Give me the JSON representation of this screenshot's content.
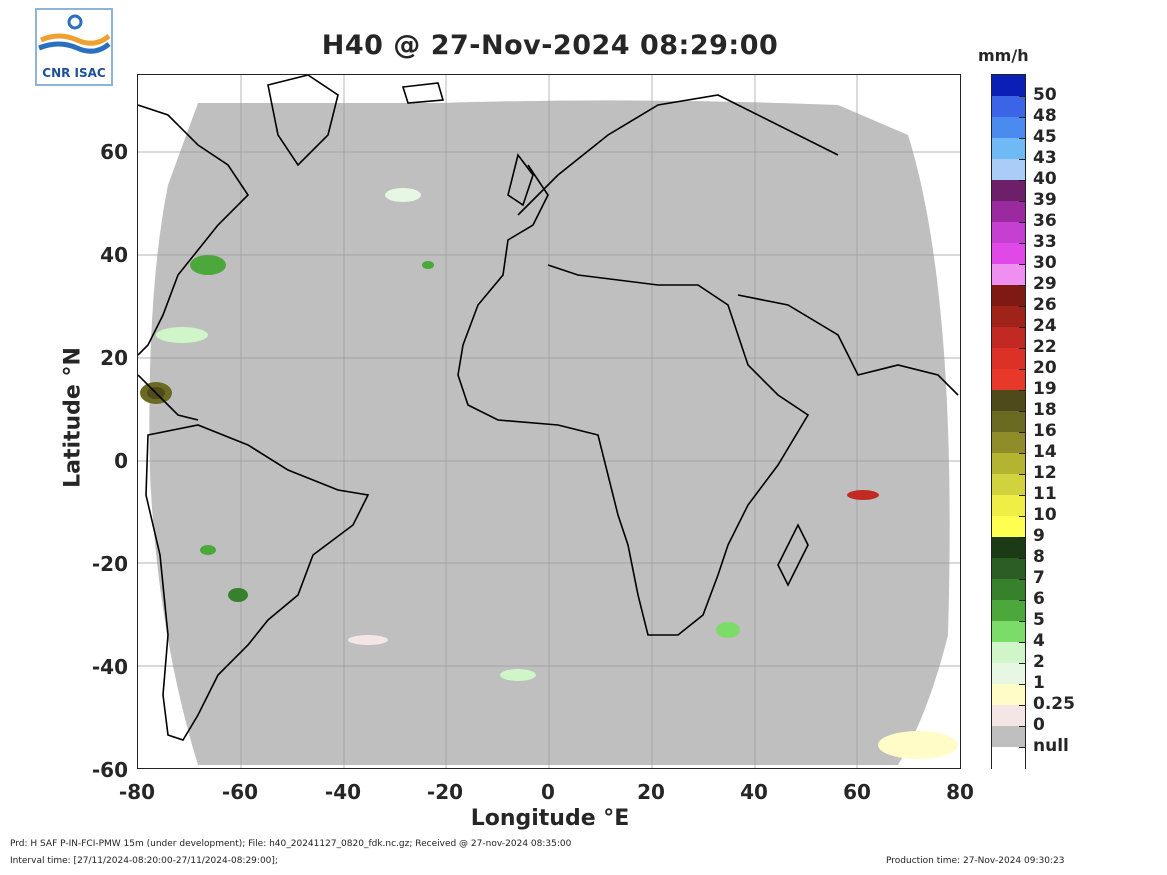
{
  "logo": {
    "text": "CNR ISAC",
    "icon": "cnr-isac-logo"
  },
  "title": "H40  @ 27-Nov-2024 08:29:00",
  "axes": {
    "xlabel": "Longitude °E",
    "ylabel": "Latitude °N",
    "xticks": [
      "-80",
      "-60",
      "-40",
      "-20",
      "0",
      "20",
      "40",
      "60",
      "80"
    ],
    "yticks": [
      "60",
      "40",
      "20",
      "0",
      "-20",
      "-40",
      "-60"
    ],
    "xlim": [
      -80,
      80
    ],
    "ylim": [
      -60,
      75
    ],
    "grid": true
  },
  "colorbar": {
    "units": "mm/h",
    "labels": [
      "50",
      "48",
      "45",
      "43",
      "40",
      "39",
      "36",
      "33",
      "30",
      "29",
      "26",
      "24",
      "22",
      "20",
      "19",
      "18",
      "16",
      "14",
      "12",
      "11",
      "10",
      "9",
      "8",
      "7",
      "6",
      "5",
      "4",
      "2",
      "1",
      "0.25",
      "0",
      "null"
    ],
    "colors": [
      "#0a1fb5",
      "#3c64e6",
      "#4b8aee",
      "#6fbaf5",
      "#a9cdf6",
      "#6e1f6a",
      "#9b2aa0",
      "#c53fd0",
      "#e048e8",
      "#ef8ff2",
      "#7e1a12",
      "#a0231a",
      "#c12a22",
      "#dc3126",
      "#e8382a",
      "#4f4a1c",
      "#6b6a22",
      "#8e8d2a",
      "#b4b332",
      "#d2d23e",
      "#eeee47",
      "#ffff52",
      "#1d3a16",
      "#2a5e22",
      "#37812c",
      "#4ca83a",
      "#7bdc6a",
      "#cff5c8",
      "#e6f7e3",
      "#fffcc8",
      "#f4e6e4",
      "#bfbfbf",
      "#ffffff"
    ]
  },
  "footer": {
    "product": "Prd: H SAF P-IN-FCI-PMW 15m (under development); File: h40_20241127_0820_fdk.nc.gz; Received @ 27-nov-2024 08:35:00",
    "interval": "Interval time: [27/11/2024-08:20:00-27/11/2024-08:29:00];",
    "production": "Production time: 27-Nov-2024 09:30:23"
  }
}
